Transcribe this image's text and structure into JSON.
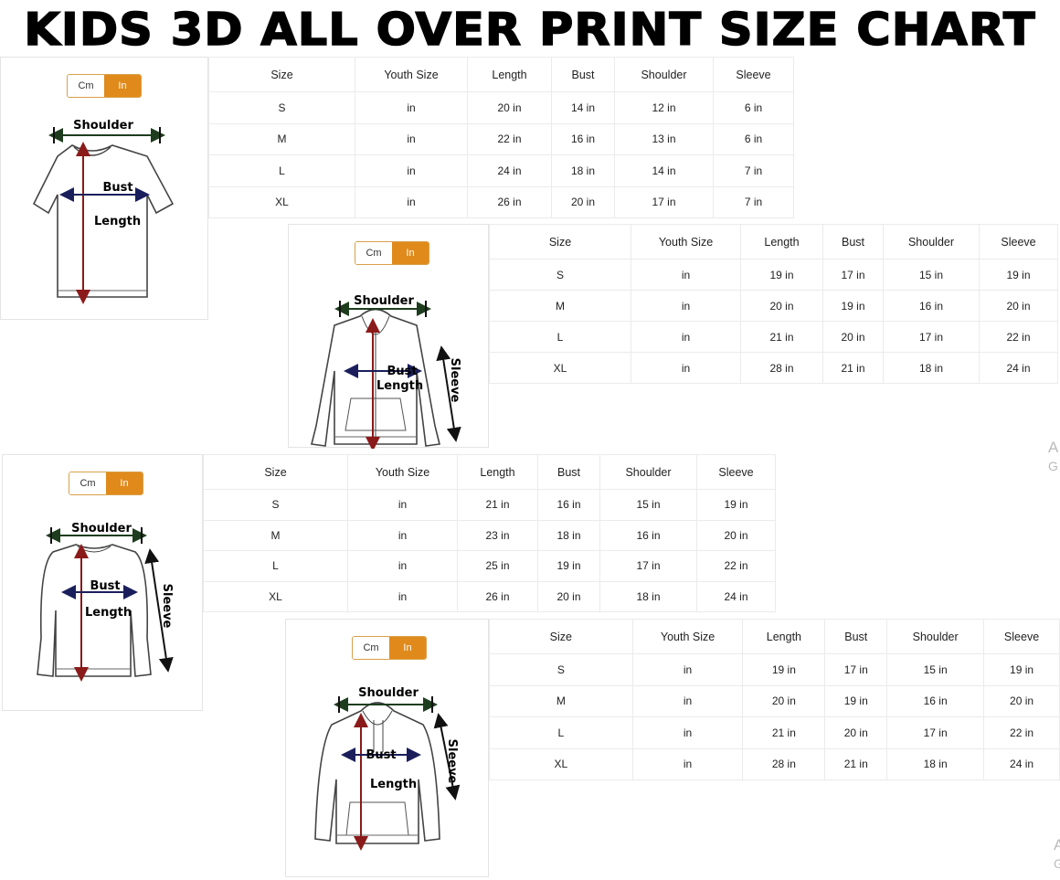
{
  "title": "KIDS 3D ALL OVER PRINT SIZE CHART",
  "colors": {
    "toggle_active": "#e08a1c",
    "length_arrow": "#8b1a1a",
    "bust_arrow": "#1a1f5c",
    "shoulder_arrow": "#1e3d1e"
  },
  "toggle": {
    "cm": "Cm",
    "in": "In"
  },
  "columns": [
    "Size",
    "Youth Size",
    "Length",
    "Bust",
    "Shoulder",
    "Sleeve"
  ],
  "panels": [
    {
      "garment_icon": "t-shirt-icon",
      "labels": {
        "shoulder": "Shoulder",
        "bust": "Bust",
        "length": "Length"
      },
      "rows": [
        [
          "S",
          "in",
          "20 in",
          "14 in",
          "12 in",
          "6 in"
        ],
        [
          "M",
          "in",
          "22 in",
          "16 in",
          "13 in",
          "6 in"
        ],
        [
          "L",
          "in",
          "24 in",
          "18 in",
          "14 in",
          "7 in"
        ],
        [
          "XL",
          "in",
          "26 in",
          "20 in",
          "17 in",
          "7 in"
        ]
      ]
    },
    {
      "garment_icon": "zip-hoodie-icon",
      "labels": {
        "shoulder": "Shoulder",
        "bust": "Bust",
        "length": "Length",
        "sleeve": "Sleeve"
      },
      "rows": [
        [
          "S",
          "in",
          "19 in",
          "17 in",
          "15 in",
          "19 in"
        ],
        [
          "M",
          "in",
          "20 in",
          "19 in",
          "16 in",
          "20 in"
        ],
        [
          "L",
          "in",
          "21 in",
          "20 in",
          "17 in",
          "22 in"
        ],
        [
          "XL",
          "in",
          "28 in",
          "21 in",
          "18 in",
          "24 in"
        ]
      ]
    },
    {
      "garment_icon": "long-sleeve-shirt-icon",
      "labels": {
        "shoulder": "Shoulder",
        "bust": "Bust",
        "length": "Length",
        "sleeve": "Sleeve"
      },
      "rows": [
        [
          "S",
          "in",
          "21 in",
          "16 in",
          "15 in",
          "19 in"
        ],
        [
          "M",
          "in",
          "23 in",
          "18 in",
          "16 in",
          "20 in"
        ],
        [
          "L",
          "in",
          "25 in",
          "19 in",
          "17 in",
          "22 in"
        ],
        [
          "XL",
          "in",
          "26 in",
          "20 in",
          "18 in",
          "24 in"
        ]
      ]
    },
    {
      "garment_icon": "pullover-hoodie-icon",
      "labels": {
        "shoulder": "Shoulder",
        "bust": "Bust",
        "length": "Length",
        "sleeve": "Sleeve"
      },
      "rows": [
        [
          "S",
          "in",
          "19 in",
          "17 in",
          "15 in",
          "19 in"
        ],
        [
          "M",
          "in",
          "20 in",
          "19 in",
          "16 in",
          "20 in"
        ],
        [
          "L",
          "in",
          "21 in",
          "20 in",
          "17 in",
          "22 in"
        ],
        [
          "XL",
          "in",
          "28 in",
          "21 in",
          "18 in",
          "24 in"
        ]
      ]
    }
  ],
  "watermark": [
    {
      "line1": "A",
      "line2": "G"
    },
    {
      "line1": "A",
      "line2": "G"
    }
  ]
}
